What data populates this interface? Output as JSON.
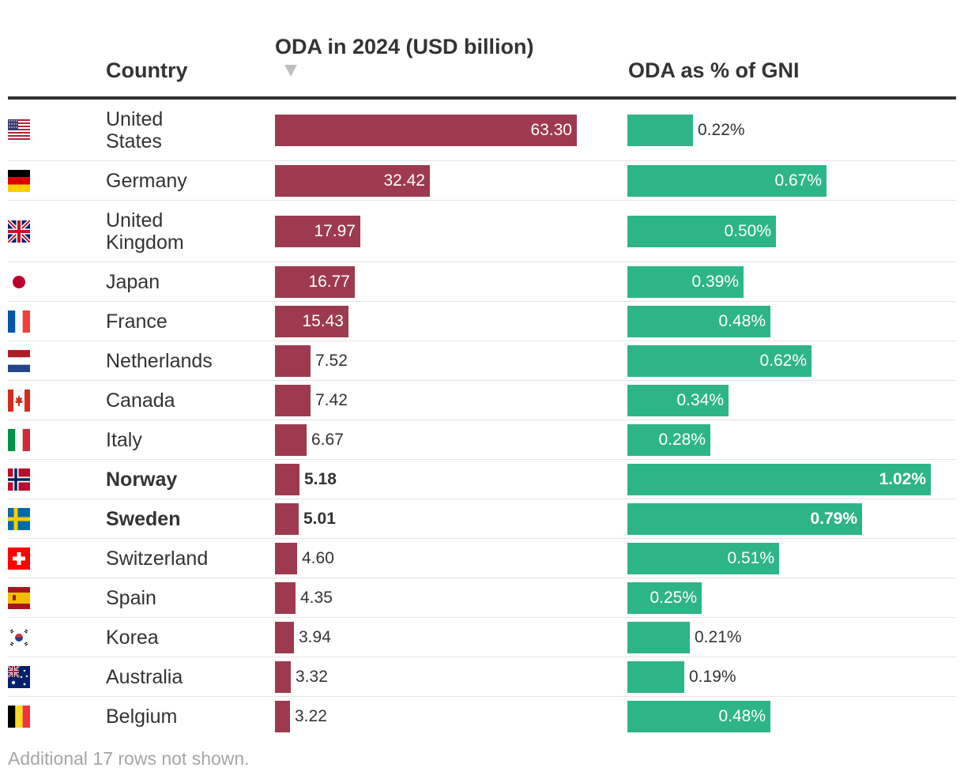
{
  "headers": {
    "country": "Country",
    "oda": "ODA in 2024 (USD billion)",
    "gni": "ODA as % of GNI"
  },
  "footnote": "Additional 17 rows not shown.",
  "colors": {
    "oda_bar": "#9e3a4f",
    "gni_bar": "#2eb587",
    "text": "#333333"
  },
  "chart_data": {
    "type": "table",
    "title": "",
    "sort": "ODA in 2024 (USD billion), descending",
    "columns": [
      "Country",
      "ODA in 2024 (USD billion)",
      "ODA as % of GNI"
    ],
    "oda_max": 63.3,
    "gni_max": 1.02,
    "rows": [
      {
        "country": "United States",
        "flag": "flag-us-icon",
        "oda": 63.3,
        "oda_label": "63.30",
        "gni": 0.22,
        "gni_label": "0.22%",
        "bold": false
      },
      {
        "country": "Germany",
        "flag": "flag-de-icon",
        "oda": 32.42,
        "oda_label": "32.42",
        "gni": 0.67,
        "gni_label": "0.67%",
        "bold": false
      },
      {
        "country": "United Kingdom",
        "flag": "flag-gb-icon",
        "oda": 17.97,
        "oda_label": "17.97",
        "gni": 0.5,
        "gni_label": "0.50%",
        "bold": false
      },
      {
        "country": "Japan",
        "flag": "flag-jp-icon",
        "oda": 16.77,
        "oda_label": "16.77",
        "gni": 0.39,
        "gni_label": "0.39%",
        "bold": false
      },
      {
        "country": "France",
        "flag": "flag-fr-icon",
        "oda": 15.43,
        "oda_label": "15.43",
        "gni": 0.48,
        "gni_label": "0.48%",
        "bold": false
      },
      {
        "country": "Netherlands",
        "flag": "flag-nl-icon",
        "oda": 7.52,
        "oda_label": "7.52",
        "gni": 0.62,
        "gni_label": "0.62%",
        "bold": false
      },
      {
        "country": "Canada",
        "flag": "flag-ca-icon",
        "oda": 7.42,
        "oda_label": "7.42",
        "gni": 0.34,
        "gni_label": "0.34%",
        "bold": false
      },
      {
        "country": "Italy",
        "flag": "flag-it-icon",
        "oda": 6.67,
        "oda_label": "6.67",
        "gni": 0.28,
        "gni_label": "0.28%",
        "bold": false
      },
      {
        "country": "Norway",
        "flag": "flag-no-icon",
        "oda": 5.18,
        "oda_label": "5.18",
        "gni": 1.02,
        "gni_label": "1.02%",
        "bold": true
      },
      {
        "country": "Sweden",
        "flag": "flag-se-icon",
        "oda": 5.01,
        "oda_label": "5.01",
        "gni": 0.79,
        "gni_label": "0.79%",
        "bold": true
      },
      {
        "country": "Switzerland",
        "flag": "flag-ch-icon",
        "oda": 4.6,
        "oda_label": "4.60",
        "gni": 0.51,
        "gni_label": "0.51%",
        "bold": false
      },
      {
        "country": "Spain",
        "flag": "flag-es-icon",
        "oda": 4.35,
        "oda_label": "4.35",
        "gni": 0.25,
        "gni_label": "0.25%",
        "bold": false
      },
      {
        "country": "Korea",
        "flag": "flag-kr-icon",
        "oda": 3.94,
        "oda_label": "3.94",
        "gni": 0.21,
        "gni_label": "0.21%",
        "bold": false
      },
      {
        "country": "Australia",
        "flag": "flag-au-icon",
        "oda": 3.32,
        "oda_label": "3.32",
        "gni": 0.19,
        "gni_label": "0.19%",
        "bold": false
      },
      {
        "country": "Belgium",
        "flag": "flag-be-icon",
        "oda": 3.22,
        "oda_label": "3.22",
        "gni": 0.48,
        "gni_label": "0.48%",
        "bold": false
      }
    ]
  }
}
